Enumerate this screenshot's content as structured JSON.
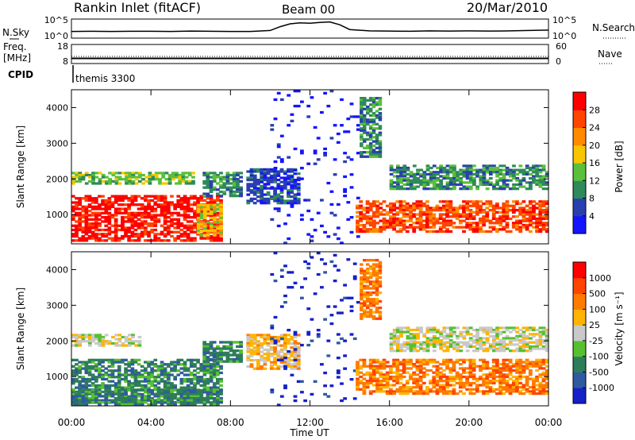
{
  "header": {
    "station": "Rankin Inlet (fitACF)",
    "beam": "Beam 00",
    "date": "20/Mar/2010"
  },
  "colors": {
    "power": [
      "#1414ff",
      "#2a3fae",
      "#2e8a5a",
      "#5bbf3c",
      "#f7c600",
      "#ff8a00",
      "#ff4400",
      "#ff0000"
    ],
    "velocity": [
      "#1520c8",
      "#2f5aa0",
      "#2e7d5a",
      "#55c030",
      "#c9c9c9",
      "#ffb400",
      "#ff7a00",
      "#ff4400",
      "#ff0000"
    ]
  },
  "chart_data": [
    {
      "type": "line",
      "panel": "sky-noise",
      "left_label": "N.Sky",
      "right_label": "N.Search",
      "left_ticks": [
        "10^5",
        "10^0"
      ],
      "right_ticks": [
        "10^5",
        "10^0"
      ],
      "x": [
        0,
        1,
        2,
        3,
        4,
        5,
        6,
        7,
        8,
        9,
        10,
        10.5,
        11,
        11.5,
        12,
        12.5,
        13,
        13.5,
        14,
        15,
        16,
        17,
        18,
        19,
        20,
        21,
        22,
        23,
        24
      ],
      "y": [
        0.35,
        0.36,
        0.35,
        0.36,
        0.36,
        0.35,
        0.37,
        0.36,
        0.35,
        0.35,
        0.4,
        0.6,
        0.75,
        0.8,
        0.78,
        0.82,
        0.85,
        0.7,
        0.45,
        0.38,
        0.37,
        0.36,
        0.38,
        0.37,
        0.38,
        0.37,
        0.38,
        0.4,
        0.42
      ]
    },
    {
      "type": "line",
      "panel": "frequency",
      "left_label_1": "Freq.",
      "left_label_2": "[MHz]",
      "right_label": "Nave",
      "left_ticks": [
        "18",
        "8"
      ],
      "right_ticks": [
        "60",
        "0"
      ],
      "cpid_label": "CPID",
      "cpid_text": "themis 3300",
      "x": [
        0,
        24
      ],
      "y": [
        10.7,
        10.7
      ]
    },
    {
      "type": "heatmap",
      "panel": "power",
      "ylabel": "Slant Range [km]",
      "yticks": [
        "1000",
        "2000",
        "3000",
        "4000"
      ],
      "ylim": [
        180,
        4500
      ],
      "xlim": [
        0,
        24
      ],
      "colorbar_label": "Power [dB]",
      "colorbar_ticks": [
        "4",
        "8",
        "12",
        "16",
        "20",
        "24",
        "28"
      ],
      "regions": [
        {
          "x0": 0.0,
          "x1": 7.6,
          "r0": 250,
          "r1": 1550,
          "level": 7
        },
        {
          "x0": 0.0,
          "x1": 6.2,
          "r0": 1850,
          "r1": 2200,
          "level": 3
        },
        {
          "x0": 6.3,
          "x1": 7.6,
          "r0": 400,
          "r1": 1300,
          "level": 4
        },
        {
          "x0": 6.6,
          "x1": 8.6,
          "r0": 1500,
          "r1": 2200,
          "level": 2
        },
        {
          "x0": 8.8,
          "x1": 11.5,
          "r0": 1300,
          "r1": 2300,
          "level": 1
        },
        {
          "x0": 10.0,
          "x1": 14.5,
          "r0": 180,
          "r1": 4500,
          "level": 0
        },
        {
          "x0": 14.3,
          "x1": 24.0,
          "r0": 500,
          "r1": 1400,
          "level": 6
        },
        {
          "x0": 16.0,
          "x1": 24.0,
          "r0": 1700,
          "r1": 2400,
          "level": 2
        },
        {
          "x0": 14.5,
          "x1": 15.6,
          "r0": 2600,
          "r1": 4300,
          "level": 2
        }
      ]
    },
    {
      "type": "heatmap",
      "panel": "velocity",
      "ylabel": "Slant Range [km]",
      "yticks": [
        "1000",
        "2000",
        "3000",
        "4000"
      ],
      "ylim": [
        180,
        4500
      ],
      "xlim": [
        0,
        24
      ],
      "xlabel": "Time UT",
      "xticks": [
        "00:00",
        "04:00",
        "08:00",
        "12:00",
        "16:00",
        "20:00",
        "00:00"
      ],
      "colorbar_label": "Velocity [m s⁻¹]",
      "colorbar_ticks": [
        "1000",
        "500",
        "100",
        "25",
        "-25",
        "-100",
        "-500",
        "-1000"
      ],
      "regions": [
        {
          "x0": 0.0,
          "x1": 7.6,
          "r0": 250,
          "r1": 1500,
          "level": 2
        },
        {
          "x0": 0.0,
          "x1": 7.6,
          "r0": 200,
          "r1": 650,
          "level": 2
        },
        {
          "x0": 0.0,
          "x1": 3.5,
          "r0": 1850,
          "r1": 2200,
          "level": 4
        },
        {
          "x0": 6.6,
          "x1": 8.6,
          "r0": 1400,
          "r1": 2000,
          "level": 2
        },
        {
          "x0": 8.8,
          "x1": 11.5,
          "r0": 1200,
          "r1": 2200,
          "level": 5
        },
        {
          "x0": 10.0,
          "x1": 14.5,
          "r0": 180,
          "r1": 4500,
          "level": 0
        },
        {
          "x0": 14.3,
          "x1": 24.0,
          "r0": 500,
          "r1": 1500,
          "level": 6
        },
        {
          "x0": 16.0,
          "x1": 24.0,
          "r0": 1700,
          "r1": 2400,
          "level": 4
        },
        {
          "x0": 14.5,
          "x1": 15.6,
          "r0": 2600,
          "r1": 4300,
          "level": 6
        }
      ]
    }
  ]
}
